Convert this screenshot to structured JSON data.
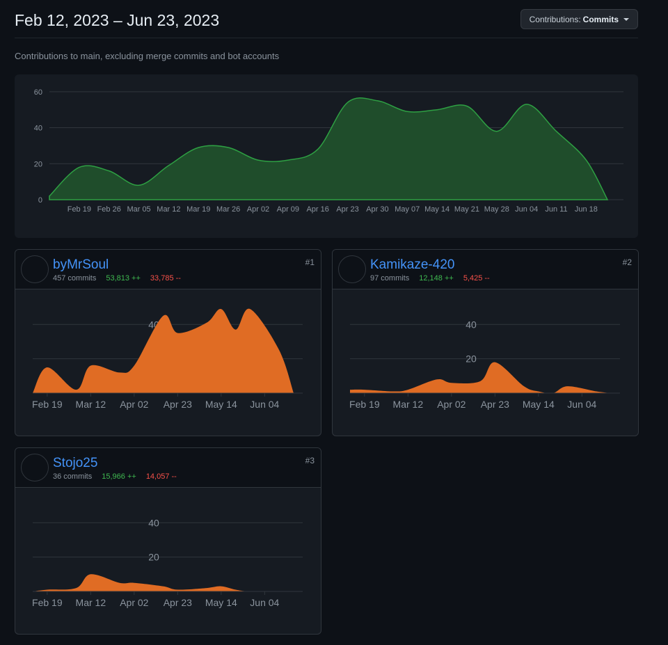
{
  "header": {
    "date_range": "Feb 12, 2023 – Jun 23, 2023",
    "dropdown_prefix": "Contributions:",
    "dropdown_value": "Commits"
  },
  "subtitle": "Contributions to main, excluding merge commits and bot accounts",
  "colors": {
    "background": "#0d1117",
    "panel": "#161b22",
    "main_area_fill": "#1f4d2b",
    "main_area_stroke": "#2ea043",
    "contributor_fill": "#e06c24",
    "link": "#4493f8",
    "additions": "#3fb950",
    "deletions": "#f85149"
  },
  "chart_data": [
    {
      "type": "area",
      "series": [
        {
          "values": [
            2,
            18,
            16,
            8,
            19,
            29,
            29,
            22,
            22,
            28,
            54,
            55,
            49,
            50,
            52,
            38,
            53,
            38,
            22,
            0
          ]
        }
      ],
      "x": [
        "Feb 12",
        "Feb 19",
        "Feb 26",
        "Mar 05",
        "Mar 12",
        "Mar 19",
        "Mar 26",
        "Apr 02",
        "Apr 09",
        "Apr 16",
        "Apr 23",
        "Apr 30",
        "May 07",
        "May 14",
        "May 21",
        "May 28",
        "Jun 04",
        "Jun 11",
        "Jun 18",
        "Jun 23"
      ],
      "tick_labels": [
        "Feb 19",
        "Feb 26",
        "Mar 05",
        "Mar 12",
        "Mar 19",
        "Mar 26",
        "Apr 02",
        "Apr 09",
        "Apr 16",
        "Apr 23",
        "Apr 30",
        "May 07",
        "May 14",
        "May 21",
        "May 28",
        "Jun 04",
        "Jun 11",
        "Jun 18"
      ],
      "yticks": [
        0,
        20,
        40,
        60
      ],
      "ylim": [
        0,
        65
      ],
      "grid": true
    },
    {
      "type": "area",
      "series": [
        {
          "values": [
            0,
            15,
            2,
            16,
            12,
            16,
            45,
            35,
            41,
            49,
            37,
            49,
            25,
            0
          ]
        }
      ],
      "x": [
        "Feb 12",
        "Feb 19",
        "Mar 05",
        "Mar 12",
        "Mar 26",
        "Apr 02",
        "Apr 16",
        "Apr 23",
        "May 07",
        "May 14",
        "May 21",
        "May 28",
        "Jun 11",
        "Jun 18"
      ],
      "tick_labels": [
        "Feb 19",
        "Mar 12",
        "Apr 02",
        "Apr 23",
        "May 14",
        "Jun 04"
      ],
      "yticks": [
        20,
        40
      ],
      "ylim": [
        0,
        50
      ],
      "grid": true
    },
    {
      "type": "area",
      "series": [
        {
          "values": [
            2,
            2,
            1,
            2,
            8,
            6,
            7,
            18,
            4,
            1,
            0,
            4,
            1,
            0
          ]
        }
      ],
      "x": [
        "Feb 12",
        "Feb 19",
        "Mar 05",
        "Mar 12",
        "Mar 26",
        "Apr 02",
        "Apr 16",
        "Apr 23",
        "May 07",
        "May 14",
        "May 21",
        "May 28",
        "Jun 11",
        "Jun 18"
      ],
      "tick_labels": [
        "Feb 19",
        "Mar 12",
        "Apr 02",
        "Apr 23",
        "May 14",
        "Jun 04"
      ],
      "yticks": [
        20,
        40
      ],
      "ylim": [
        0,
        50
      ],
      "grid": true
    },
    {
      "type": "area",
      "series": [
        {
          "values": [
            0,
            1,
            2,
            10,
            5,
            5,
            3,
            1,
            2,
            3,
            1,
            0,
            0,
            0
          ]
        }
      ],
      "x": [
        "Feb 12",
        "Feb 19",
        "Mar 05",
        "Mar 12",
        "Mar 26",
        "Apr 02",
        "Apr 16",
        "Apr 23",
        "May 07",
        "May 14",
        "May 21",
        "May 28",
        "Jun 11",
        "Jun 18"
      ],
      "tick_labels": [
        "Feb 19",
        "Mar 12",
        "Apr 02",
        "Apr 23",
        "May 14",
        "Jun 04"
      ],
      "yticks": [
        20,
        40
      ],
      "ylim": [
        0,
        50
      ],
      "grid": true
    }
  ],
  "contributors": [
    {
      "rank": "#1",
      "name": "byMrSoul",
      "commits": "457 commits",
      "additions": "53,813 ++",
      "deletions": "33,785 --",
      "avatar": "user-photo"
    },
    {
      "rank": "#2",
      "name": "Kamikaze-420",
      "commits": "97 commits",
      "additions": "12,148 ++",
      "deletions": "5,425 --",
      "avatar": "galaxy-image"
    },
    {
      "rank": "#3",
      "name": "Stojo25",
      "commits": "36 commits",
      "additions": "15,966 ++",
      "deletions": "14,057 --",
      "avatar": "identicon"
    }
  ]
}
